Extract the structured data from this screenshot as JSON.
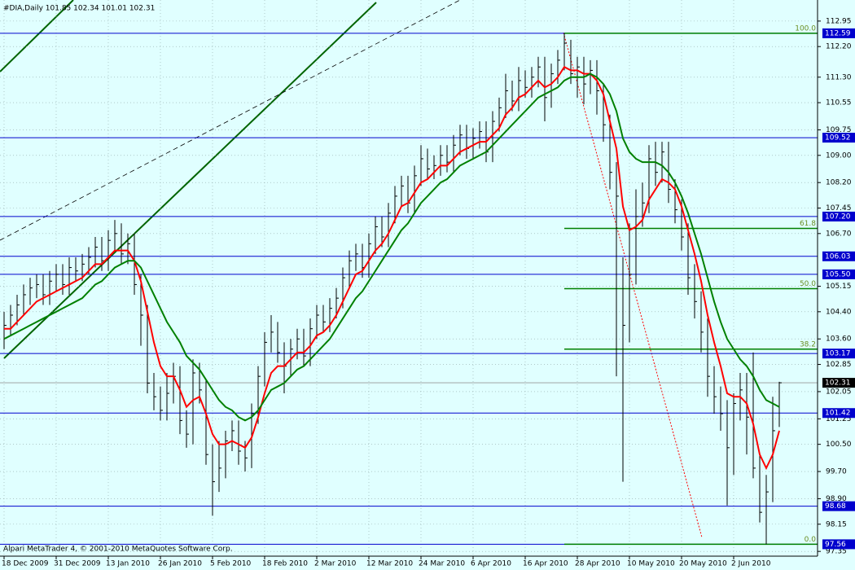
{
  "chart_data": {
    "type": "ohlc",
    "title": "#DIA,Daily  101.85 102.34 101.01 102.31",
    "footer": "Alpari MetaTrader 4, © 2001-2010 MetaQuotes Software Corp.",
    "categories": [
      "18 Dec 2009",
      null,
      null,
      null,
      null,
      null,
      null,
      null,
      "31 Dec 2009",
      null,
      null,
      null,
      null,
      null,
      null,
      null,
      "13 Jan 2010",
      null,
      null,
      null,
      null,
      null,
      null,
      null,
      "26 Jan 2010",
      null,
      null,
      null,
      null,
      null,
      null,
      null,
      "5 Feb 2010",
      null,
      null,
      null,
      null,
      null,
      null,
      null,
      "18 Feb 2010",
      null,
      null,
      null,
      null,
      null,
      null,
      null,
      "2 Mar 2010",
      null,
      null,
      null,
      null,
      null,
      null,
      null,
      "12 Mar 2010",
      null,
      null,
      null,
      null,
      null,
      null,
      null,
      "24 Mar 2010",
      null,
      null,
      null,
      null,
      null,
      null,
      null,
      "6 Apr 2010",
      null,
      null,
      null,
      null,
      null,
      null,
      null,
      "16 Apr 2010",
      null,
      null,
      null,
      null,
      null,
      null,
      null,
      "28 Apr 2010",
      null,
      null,
      null,
      null,
      null,
      null,
      null,
      "10 May 2010",
      null,
      null,
      null,
      null,
      null,
      null,
      null,
      "20 May 2010",
      null,
      null,
      null,
      null,
      null,
      null,
      null,
      "2 Jun 2010",
      null,
      null,
      null,
      null,
      null,
      null,
      null
    ],
    "high": [
      104.4,
      104.6,
      104.9,
      105.2,
      105.4,
      105.5,
      105.5,
      105.6,
      105.8,
      105.8,
      106.0,
      106.0,
      106.1,
      106.3,
      106.6,
      106.6,
      106.8,
      107.1,
      107.0,
      106.7,
      106.7,
      105.5,
      104.6,
      102.6,
      102.2,
      102.6,
      102.9,
      102.8,
      101.5,
      103.0,
      102.9,
      102.4,
      100.5,
      100.6,
      100.9,
      101.2,
      101.2,
      100.6,
      101.7,
      102.8,
      103.8,
      104.3,
      104.1,
      103.5,
      103.6,
      103.9,
      103.9,
      104.2,
      104.6,
      104.6,
      104.8,
      105.1,
      105.7,
      106.2,
      106.4,
      106.4,
      106.7,
      107.2,
      107.2,
      107.6,
      108.1,
      108.4,
      108.4,
      108.7,
      109.3,
      109.2,
      109.0,
      109.3,
      109.3,
      109.6,
      109.9,
      109.9,
      109.8,
      110.0,
      110.0,
      110.3,
      110.7,
      111.4,
      111.2,
      111.6,
      111.5,
      111.6,
      111.9,
      111.9,
      111.7,
      112.1,
      112.59,
      112.4,
      111.9,
      111.9,
      111.8,
      111.8,
      111.1,
      110.2,
      108.8,
      106.0,
      107.0,
      108.0,
      108.2,
      109.3,
      109.4,
      109.4,
      109.4,
      108.3,
      107.7,
      107.0,
      105.8,
      105.0,
      104.2,
      102.8,
      102.2,
      101.8,
      102.0,
      102.6,
      102.6,
      103.2,
      100.2,
      99.6,
      101.9,
      102.34
    ],
    "low": [
      103.3,
      103.7,
      104.0,
      104.3,
      104.6,
      104.8,
      104.6,
      104.6,
      105.0,
      104.9,
      104.9,
      105.3,
      105.3,
      105.5,
      105.7,
      105.6,
      105.6,
      106.2,
      105.8,
      105.8,
      104.9,
      103.4,
      102.0,
      101.5,
      101.2,
      101.2,
      101.7,
      100.8,
      100.4,
      100.5,
      101.7,
      99.9,
      98.4,
      99.1,
      99.5,
      100.3,
      99.9,
      99.7,
      99.8,
      101.1,
      102.2,
      103.2,
      102.9,
      102.0,
      102.5,
      103.0,
      102.8,
      102.8,
      103.6,
      103.8,
      103.8,
      104.2,
      104.5,
      105.1,
      105.6,
      105.4,
      105.4,
      106.1,
      106.3,
      106.3,
      107.0,
      107.5,
      107.3,
      107.3,
      108.1,
      108.3,
      108.3,
      108.4,
      108.5,
      108.5,
      109.0,
      108.9,
      108.9,
      109.2,
      108.8,
      108.8,
      109.7,
      110.1,
      110.3,
      110.3,
      110.7,
      110.7,
      111.0,
      110.0,
      110.4,
      111.1,
      111.5,
      111.1,
      110.7,
      110.5,
      110.8,
      110.2,
      109.4,
      108.0,
      102.5,
      99.4,
      103.5,
      105.2,
      106.9,
      107.3,
      108.1,
      108.2,
      107.6,
      107.0,
      106.2,
      104.9,
      104.2,
      103.2,
      101.9,
      101.4,
      100.9,
      98.7,
      99.6,
      101.2,
      100.2,
      99.5,
      98.2,
      97.56,
      98.8,
      101.01
    ],
    "close": [
      104.0,
      104.3,
      104.6,
      104.9,
      105.1,
      105.2,
      104.9,
      105.3,
      105.5,
      105.2,
      105.7,
      105.6,
      105.8,
      106.0,
      106.3,
      105.9,
      106.5,
      106.7,
      106.1,
      106.4,
      105.2,
      104.3,
      102.3,
      101.9,
      101.5,
      102.0,
      102.5,
      101.2,
      100.8,
      102.6,
      102.1,
      100.2,
      99.4,
      99.8,
      100.6,
      100.9,
      100.3,
      100.1,
      101.4,
      102.5,
      103.5,
      103.8,
      103.2,
      102.8,
      103.3,
      103.6,
      103.1,
      103.9,
      104.3,
      104.1,
      104.5,
      104.8,
      105.4,
      105.9,
      106.1,
      105.7,
      106.4,
      106.9,
      106.6,
      107.3,
      107.8,
      108.1,
      107.6,
      108.4,
      108.9,
      108.6,
      108.7,
      109.0,
      108.8,
      109.3,
      109.6,
      109.2,
      109.5,
      109.7,
      109.1,
      110.0,
      110.4,
      110.9,
      110.6,
      111.2,
      111.0,
      111.3,
      111.6,
      110.7,
      111.4,
      111.8,
      112.3,
      111.4,
      111.6,
      111.1,
      111.5,
      110.9,
      109.9,
      108.5,
      107.8,
      104.0,
      105.5,
      107.2,
      107.6,
      108.9,
      108.5,
      109.1,
      108.0,
      107.4,
      106.6,
      105.4,
      104.7,
      103.8,
      102.5,
      101.9,
      101.4,
      100.4,
      101.7,
      102.1,
      101.3,
      99.8,
      98.5,
      99.1,
      100.9,
      102.31
    ],
    "bar_color": "#000000",
    "moving_averages": [
      {
        "color": "#ff0000",
        "values": [
          103.9,
          103.9,
          104.1,
          104.3,
          104.5,
          104.7,
          104.8,
          104.9,
          105.0,
          105.1,
          105.2,
          105.3,
          105.4,
          105.6,
          105.8,
          105.8,
          106.0,
          106.2,
          106.2,
          106.2,
          105.9,
          105.3,
          104.4,
          103.5,
          102.8,
          102.5,
          102.5,
          102.1,
          101.6,
          101.8,
          101.9,
          101.4,
          100.8,
          100.5,
          100.5,
          100.6,
          100.5,
          100.4,
          100.7,
          101.3,
          102.0,
          102.6,
          102.8,
          102.8,
          103.0,
          103.2,
          103.2,
          103.4,
          103.7,
          103.8,
          104.0,
          104.3,
          104.7,
          105.1,
          105.5,
          105.6,
          105.9,
          106.2,
          106.4,
          106.7,
          107.1,
          107.5,
          107.6,
          107.9,
          108.2,
          108.3,
          108.5,
          108.7,
          108.7,
          108.9,
          109.1,
          109.2,
          109.3,
          109.4,
          109.4,
          109.6,
          109.8,
          110.2,
          110.4,
          110.7,
          110.8,
          111.0,
          111.2,
          111.0,
          111.1,
          111.3,
          111.6,
          111.5,
          111.5,
          111.4,
          111.4,
          111.2,
          110.8,
          110.0,
          109.2,
          107.5,
          106.8,
          106.9,
          107.1,
          107.7,
          108.0,
          108.3,
          108.2,
          108.0,
          107.5,
          106.8,
          106.1,
          105.3,
          104.3,
          103.5,
          102.8,
          102.0,
          101.9,
          101.9,
          101.7,
          101.1,
          100.2,
          99.8,
          100.2,
          100.9
        ]
      },
      {
        "color": "#008000",
        "values": [
          103.6,
          103.7,
          103.8,
          103.9,
          104.0,
          104.1,
          104.2,
          104.3,
          104.4,
          104.5,
          104.6,
          104.7,
          104.8,
          105.0,
          105.2,
          105.3,
          105.5,
          105.7,
          105.8,
          105.9,
          105.9,
          105.7,
          105.3,
          104.9,
          104.5,
          104.1,
          103.8,
          103.5,
          103.1,
          102.9,
          102.7,
          102.4,
          102.1,
          101.8,
          101.6,
          101.5,
          101.3,
          101.2,
          101.3,
          101.5,
          101.8,
          102.1,
          102.2,
          102.3,
          102.5,
          102.7,
          102.8,
          103.0,
          103.2,
          103.4,
          103.6,
          103.9,
          104.2,
          104.5,
          104.8,
          105.0,
          105.3,
          105.6,
          105.9,
          106.2,
          106.5,
          106.8,
          107.0,
          107.3,
          107.6,
          107.8,
          108.0,
          108.2,
          108.3,
          108.5,
          108.7,
          108.8,
          108.9,
          109.0,
          109.1,
          109.3,
          109.5,
          109.7,
          109.9,
          110.1,
          110.3,
          110.5,
          110.7,
          110.8,
          110.9,
          111.0,
          111.2,
          111.3,
          111.3,
          111.3,
          111.4,
          111.3,
          111.1,
          110.8,
          110.3,
          109.5,
          109.1,
          108.9,
          108.8,
          108.8,
          108.8,
          108.7,
          108.5,
          108.2,
          107.8,
          107.3,
          106.7,
          106.1,
          105.4,
          104.7,
          104.1,
          103.6,
          103.3,
          103.0,
          102.8,
          102.5,
          102.1,
          101.8,
          101.7,
          101.6
        ]
      }
    ],
    "levels": {
      "color": "#0000cd",
      "values": [
        112.59,
        109.52,
        {
          "value": 107.2,
          "label": "107.20"
        },
        106.03,
        {
          "value": 105.5,
          "label": "105.50"
        },
        103.17,
        101.42,
        98.68,
        97.56
      ]
    },
    "current_price_color": "#999999",
    "fibonacci": {
      "color": "#008000",
      "label_color": "#6b8e23",
      "start": 86,
      "levels": [
        {
          "label": "100.0",
          "price": 112.59
        },
        {
          "label": "61.8",
          "price": 106.85
        },
        {
          "label": "50.0",
          "price": 105.08
        },
        {
          "label": "38.2",
          "price": 103.3
        },
        {
          "label": "0.0",
          "price": 97.56
        }
      ]
    },
    "ylim": [
      97.21,
      113.57
    ],
    "yticks": [
      112.95,
      {
        "value": 112.2,
        "label": "112.20"
      },
      {
        "value": 111.3,
        "label": "111.30"
      },
      110.55,
      109.75,
      {
        "value": 109.0,
        "label": "109.00"
      },
      {
        "value": 108.2,
        "label": "108.20"
      },
      107.45,
      {
        "value": 106.7,
        "label": "106.70"
      },
      105.15,
      {
        "value": 104.4,
        "label": "104.40"
      },
      {
        "value": 103.6,
        "label": "103.60"
      },
      102.85,
      102.05,
      101.25,
      {
        "value": 100.5,
        "label": "100.50"
      },
      {
        "value": 99.7,
        "label": "99.70"
      },
      {
        "value": 98.9,
        "label": "98.90"
      },
      98.15,
      97.35
    ],
    "grid": true,
    "background": "#e0ffff"
  }
}
